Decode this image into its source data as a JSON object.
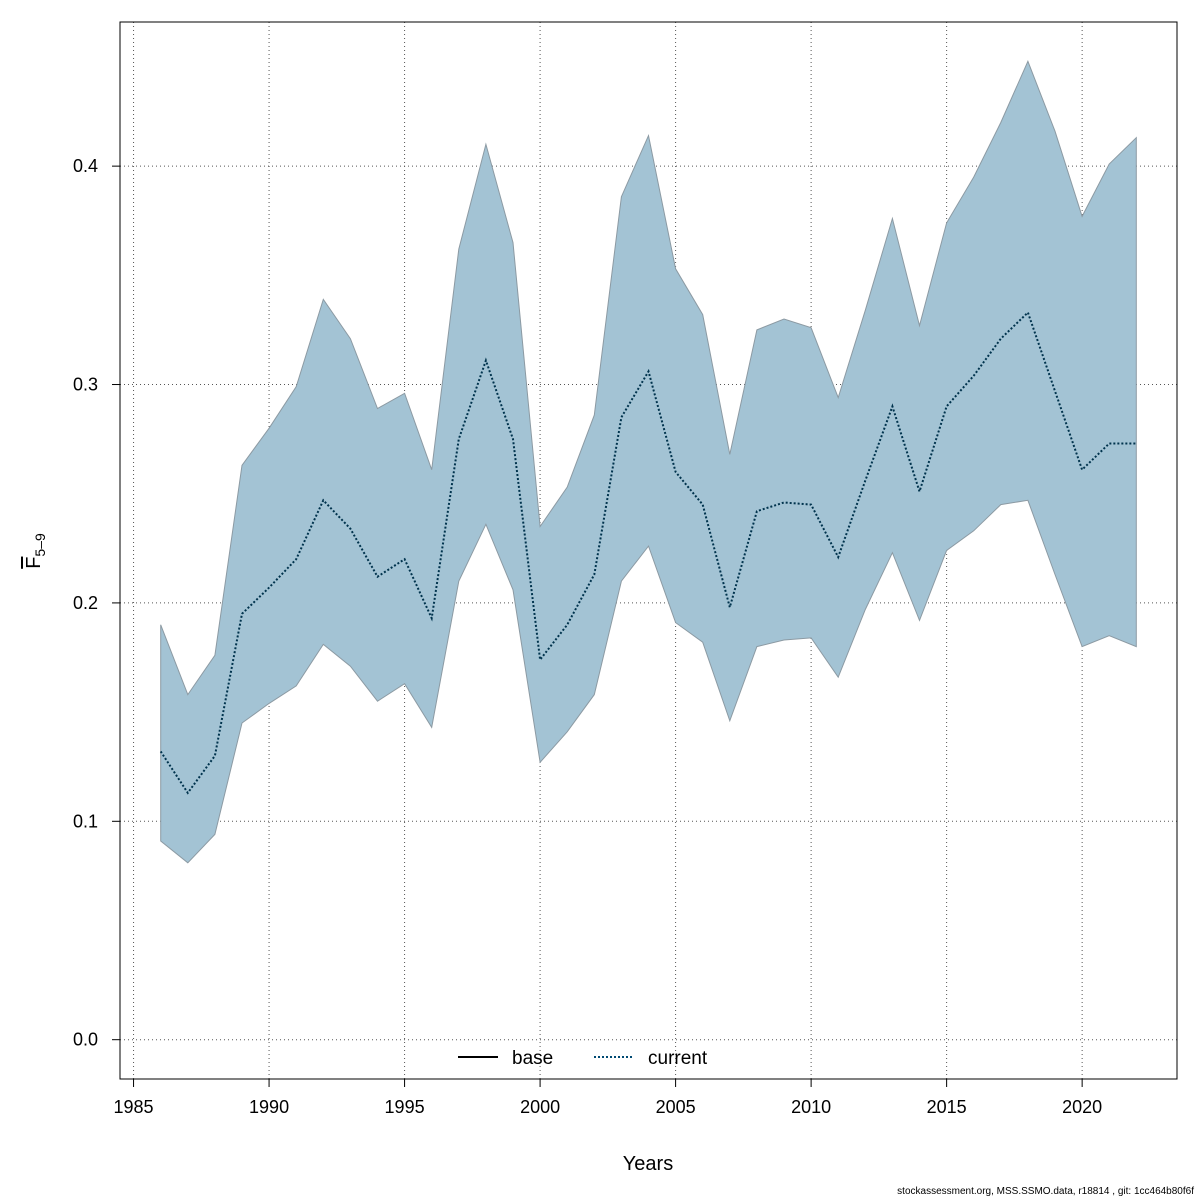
{
  "chart_data": {
    "type": "line",
    "xlabel": "Years",
    "ylabel": {
      "main": "F",
      "sub": "5–9"
    },
    "xlim": [
      1984.5,
      2023.5
    ],
    "ylim": [
      -0.018,
      0.466
    ],
    "xticks": [
      1985,
      1990,
      1995,
      2000,
      2005,
      2010,
      2015,
      2020
    ],
    "yticks": [
      0.0,
      0.1,
      0.2,
      0.3,
      0.4
    ],
    "ytick_labels": [
      "0.0",
      "0.1",
      "0.2",
      "0.3",
      "0.4"
    ],
    "grid": true,
    "legend": {
      "position": "bottom-center",
      "entries": [
        {
          "label": "base",
          "style": "solid",
          "color": "#000000"
        },
        {
          "label": "current",
          "style": "dotted",
          "color": "#004a73"
        }
      ]
    },
    "x": [
      1986,
      1987,
      1988,
      1989,
      1990,
      1991,
      1992,
      1993,
      1994,
      1995,
      1996,
      1997,
      1998,
      1999,
      2000,
      2001,
      2002,
      2003,
      2004,
      2005,
      2006,
      2007,
      2008,
      2009,
      2010,
      2011,
      2012,
      2013,
      2014,
      2015,
      2016,
      2017,
      2018,
      2019,
      2020,
      2021,
      2022
    ],
    "series": [
      {
        "name": "current",
        "color": "#00334d",
        "values": [
          0.132,
          0.113,
          0.13,
          0.195,
          0.207,
          0.22,
          0.247,
          0.234,
          0.212,
          0.22,
          0.193,
          0.275,
          0.311,
          0.275,
          0.174,
          0.19,
          0.213,
          0.285,
          0.306,
          0.26,
          0.245,
          0.198,
          0.242,
          0.246,
          0.245,
          0.221,
          0.256,
          0.29,
          0.251,
          0.29,
          0.304,
          0.321,
          0.333,
          0.297,
          0.261,
          0.273,
          0.273
        ]
      }
    ],
    "band": {
      "fill": "#a3c3d4",
      "stroke": "#8c9aa3",
      "lower": [
        0.091,
        0.081,
        0.094,
        0.145,
        0.154,
        0.162,
        0.181,
        0.171,
        0.155,
        0.163,
        0.143,
        0.21,
        0.236,
        0.206,
        0.127,
        0.141,
        0.158,
        0.21,
        0.226,
        0.191,
        0.182,
        0.146,
        0.18,
        0.183,
        0.184,
        0.166,
        0.197,
        0.223,
        0.192,
        0.224,
        0.233,
        0.245,
        0.247,
        0.213,
        0.18,
        0.185,
        0.18
      ],
      "upper": [
        0.19,
        0.158,
        0.176,
        0.263,
        0.28,
        0.299,
        0.339,
        0.321,
        0.289,
        0.296,
        0.261,
        0.362,
        0.41,
        0.365,
        0.235,
        0.253,
        0.286,
        0.386,
        0.414,
        0.353,
        0.332,
        0.268,
        0.325,
        0.33,
        0.326,
        0.294,
        0.334,
        0.376,
        0.327,
        0.374,
        0.395,
        0.42,
        0.448,
        0.416,
        0.377,
        0.401,
        0.413
      ]
    }
  },
  "footer": "stockassessment.org, MSS.SSMO.data, r18814 , git: 1cc464b80f6f"
}
